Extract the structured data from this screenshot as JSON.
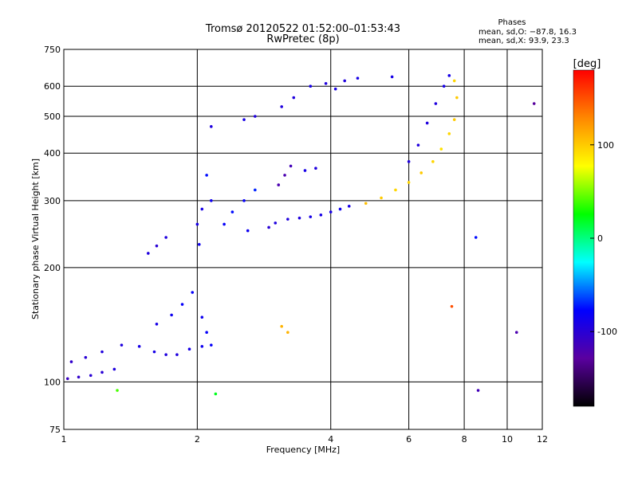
{
  "chart_data": {
    "type": "scatter",
    "title": "Tromsø 20120522 01:52:00–01:53:43",
    "subtitle": "RwPretec (8p)",
    "xlabel": "Frequency [MHz]",
    "ylabel": "Stationary phase Virtual Height [km]",
    "x_scale": "log",
    "y_scale": "log",
    "xlim": [
      1,
      12
    ],
    "ylim": [
      75,
      750
    ],
    "grid": true,
    "x_ticks": [
      1,
      2,
      4,
      6,
      8,
      10,
      12
    ],
    "x_tick_labels": [
      "1",
      "2",
      "4",
      "6",
      "8",
      "10",
      "12"
    ],
    "y_ticks": [
      75,
      100,
      200,
      300,
      400,
      500,
      600,
      750
    ],
    "y_tick_labels": [
      "75",
      "100",
      "200",
      "300",
      "400",
      "500",
      "600",
      "750"
    ],
    "stats": {
      "heading": "Phases",
      "line1": "mean, sd,O: −87.8, 16.3",
      "line2": "mean, sd,X:  93.9, 23.3"
    },
    "colorbar": {
      "label": "[deg]",
      "range": [
        -180,
        180
      ],
      "ticks": [
        100,
        0,
        -100
      ],
      "tick_labels": [
        "100",
        "0",
        "-100"
      ],
      "colors": [
        "#ff0000",
        "#ff8800",
        "#ffff00",
        "#00ff00",
        "#00ffff",
        "#0000ff",
        "#5a00a0",
        "#000000"
      ]
    },
    "series": [
      {
        "values": [
          {
            "x": 1.02,
            "y": 102,
            "p": -110
          },
          {
            "x": 1.08,
            "y": 103,
            "p": -105
          },
          {
            "x": 1.15,
            "y": 104,
            "p": -100
          },
          {
            "x": 1.22,
            "y": 106,
            "p": -100
          },
          {
            "x": 1.3,
            "y": 108,
            "p": -95
          },
          {
            "x": 1.04,
            "y": 113,
            "p": -105
          },
          {
            "x": 1.12,
            "y": 116,
            "p": -100
          },
          {
            "x": 1.22,
            "y": 120,
            "p": -95
          },
          {
            "x": 1.35,
            "y": 125,
            "p": -95
          },
          {
            "x": 1.48,
            "y": 124,
            "p": -90
          },
          {
            "x": 1.6,
            "y": 120,
            "p": -90
          },
          {
            "x": 1.7,
            "y": 118,
            "p": -95
          },
          {
            "x": 1.8,
            "y": 118,
            "p": -95
          },
          {
            "x": 1.92,
            "y": 122,
            "p": -90
          },
          {
            "x": 2.05,
            "y": 124,
            "p": -85
          },
          {
            "x": 2.15,
            "y": 125,
            "p": -80
          },
          {
            "x": 1.62,
            "y": 142,
            "p": -90
          },
          {
            "x": 1.75,
            "y": 150,
            "p": -85
          },
          {
            "x": 1.85,
            "y": 160,
            "p": -80
          },
          {
            "x": 1.95,
            "y": 172,
            "p": -80
          },
          {
            "x": 2.05,
            "y": 148,
            "p": -85
          },
          {
            "x": 2.1,
            "y": 135,
            "p": -80
          },
          {
            "x": 1.55,
            "y": 218,
            "p": -95
          },
          {
            "x": 1.62,
            "y": 228,
            "p": -100
          },
          {
            "x": 1.7,
            "y": 240,
            "p": -95
          },
          {
            "x": 2.0,
            "y": 260,
            "p": -90
          },
          {
            "x": 2.02,
            "y": 230,
            "p": -85
          },
          {
            "x": 2.05,
            "y": 285,
            "p": -90
          },
          {
            "x": 2.15,
            "y": 300,
            "p": -85
          },
          {
            "x": 2.3,
            "y": 260,
            "p": -80
          },
          {
            "x": 2.4,
            "y": 280,
            "p": -75
          },
          {
            "x": 2.55,
            "y": 300,
            "p": -80
          },
          {
            "x": 2.6,
            "y": 250,
            "p": -85
          },
          {
            "x": 2.7,
            "y": 320,
            "p": -70
          },
          {
            "x": 2.1,
            "y": 350,
            "p": -75
          },
          {
            "x": 2.15,
            "y": 470,
            "p": -95
          },
          {
            "x": 2.55,
            "y": 490,
            "p": -90
          },
          {
            "x": 2.7,
            "y": 500,
            "p": -95
          },
          {
            "x": 2.9,
            "y": 255,
            "p": -100
          },
          {
            "x": 3.0,
            "y": 262,
            "p": -95
          },
          {
            "x": 3.2,
            "y": 268,
            "p": -95
          },
          {
            "x": 3.4,
            "y": 270,
            "p": -95
          },
          {
            "x": 3.6,
            "y": 272,
            "p": -90
          },
          {
            "x": 3.8,
            "y": 275,
            "p": -90
          },
          {
            "x": 4.0,
            "y": 280,
            "p": -90
          },
          {
            "x": 4.2,
            "y": 285,
            "p": -85
          },
          {
            "x": 4.4,
            "y": 290,
            "p": -90
          },
          {
            "x": 3.05,
            "y": 330,
            "p": -120
          },
          {
            "x": 3.15,
            "y": 350,
            "p": -120
          },
          {
            "x": 3.25,
            "y": 370,
            "p": -115
          },
          {
            "x": 3.5,
            "y": 360,
            "p": -90
          },
          {
            "x": 3.7,
            "y": 365,
            "p": -95
          },
          {
            "x": 3.1,
            "y": 530,
            "p": -95
          },
          {
            "x": 3.3,
            "y": 560,
            "p": -95
          },
          {
            "x": 3.6,
            "y": 600,
            "p": -90
          },
          {
            "x": 3.9,
            "y": 610,
            "p": -95
          },
          {
            "x": 4.1,
            "y": 590,
            "p": -90
          },
          {
            "x": 4.3,
            "y": 620,
            "p": -95
          },
          {
            "x": 4.6,
            "y": 630,
            "p": -90
          },
          {
            "x": 5.5,
            "y": 635,
            "p": -90
          },
          {
            "x": 6.0,
            "y": 380,
            "p": -95
          },
          {
            "x": 6.3,
            "y": 420,
            "p": -95
          },
          {
            "x": 6.6,
            "y": 480,
            "p": -95
          },
          {
            "x": 6.9,
            "y": 540,
            "p": -95
          },
          {
            "x": 7.2,
            "y": 600,
            "p": -90
          },
          {
            "x": 7.4,
            "y": 640,
            "p": -90
          },
          {
            "x": 3.1,
            "y": 140,
            "p": 110
          },
          {
            "x": 3.2,
            "y": 135,
            "p": 110
          },
          {
            "x": 4.8,
            "y": 295,
            "p": 105
          },
          {
            "x": 5.2,
            "y": 305,
            "p": 100
          },
          {
            "x": 5.6,
            "y": 320,
            "p": 95
          },
          {
            "x": 6.0,
            "y": 335,
            "p": 95
          },
          {
            "x": 6.4,
            "y": 355,
            "p": 100
          },
          {
            "x": 6.8,
            "y": 380,
            "p": 95
          },
          {
            "x": 7.1,
            "y": 410,
            "p": 90
          },
          {
            "x": 7.4,
            "y": 450,
            "p": 95
          },
          {
            "x": 7.6,
            "y": 490,
            "p": 100
          },
          {
            "x": 7.7,
            "y": 560,
            "p": 100
          },
          {
            "x": 7.6,
            "y": 620,
            "p": 95
          },
          {
            "x": 8.5,
            "y": 240,
            "p": -75
          },
          {
            "x": 8.6,
            "y": 95,
            "p": -115
          },
          {
            "x": 10.5,
            "y": 135,
            "p": -120
          },
          {
            "x": 11.5,
            "y": 540,
            "p": -130
          },
          {
            "x": 1.32,
            "y": 95,
            "p": 40
          },
          {
            "x": 2.2,
            "y": 93,
            "p": 20
          },
          {
            "x": 7.5,
            "y": 158,
            "p": 150
          }
        ]
      }
    ]
  }
}
